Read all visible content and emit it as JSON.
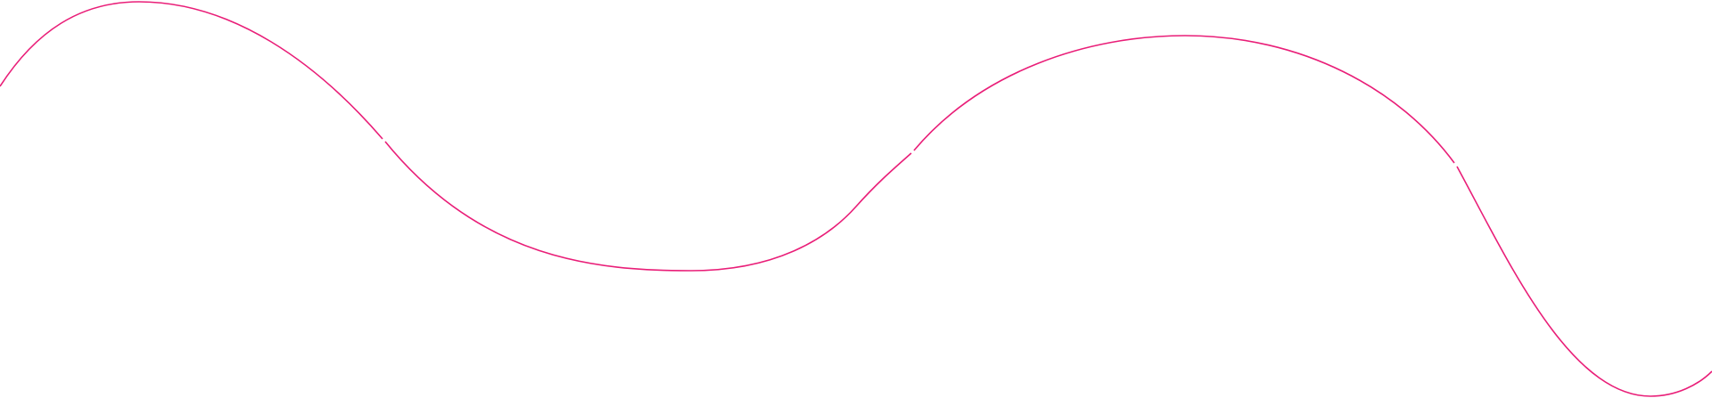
{
  "decoration": {
    "type": "wavy-line",
    "stroke_color": "#e91e78",
    "background_color": "#ffffff"
  }
}
